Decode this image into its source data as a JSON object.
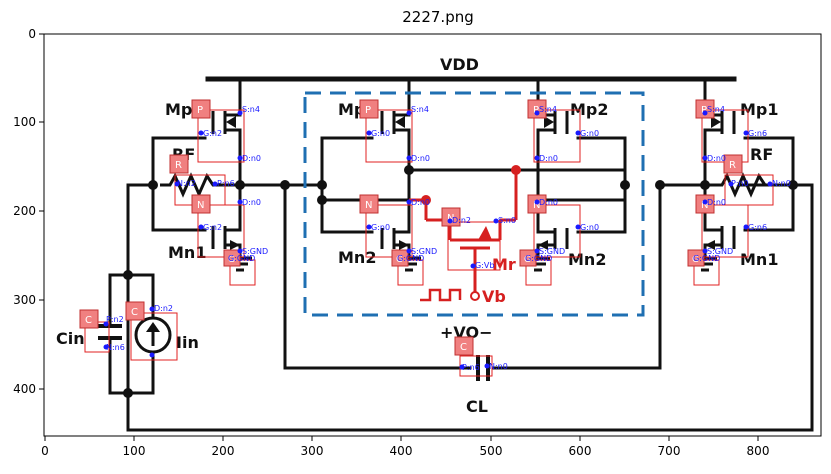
{
  "figure": {
    "title": "2227.png",
    "x_ticks": [
      "0",
      "100",
      "200",
      "300",
      "400",
      "500",
      "600",
      "700",
      "800"
    ],
    "y_ticks": [
      "0",
      "100",
      "200",
      "300",
      "400"
    ]
  },
  "circuit": {
    "vdd_label": "VDD",
    "vo_label": "+VO−",
    "mr_label": "Mr",
    "vb_label": "Vb",
    "cl_label": "CL",
    "cin_label": "Cin",
    "iin_label": "Iin",
    "mp_left": "Mp1",
    "mp_c1": "Mp2",
    "mp_c2": "Mp2",
    "mp_right": "Mp1",
    "rf_left": "RF",
    "rf_right": "RF",
    "mn_left": "Mn1",
    "mn_c1": "Mn2",
    "mn_c2": "Mn2",
    "mn_right": "Mn1"
  },
  "annotations": {
    "badges": {
      "p": "P",
      "n": "N",
      "r": "R",
      "g": "G",
      "c": "C"
    },
    "pins": {
      "s_n4": "S:n4",
      "g_n2": "G:n2",
      "d_n0": "D:n0",
      "n_n2": "N:n2",
      "p_n6": "P:n6",
      "s_gnd": "S:GND",
      "g_gnd": "G:GND",
      "n_n6": "N:n6",
      "p_n2": "P:n2",
      "g_n0": "G:n0",
      "s_n0": "S:n0",
      "g_n6": "G:n6",
      "p_n0": "P:n0",
      "n_n0": "N:n0",
      "d_n2": "D:n2",
      "g_vb": "G:Vb"
    }
  }
}
